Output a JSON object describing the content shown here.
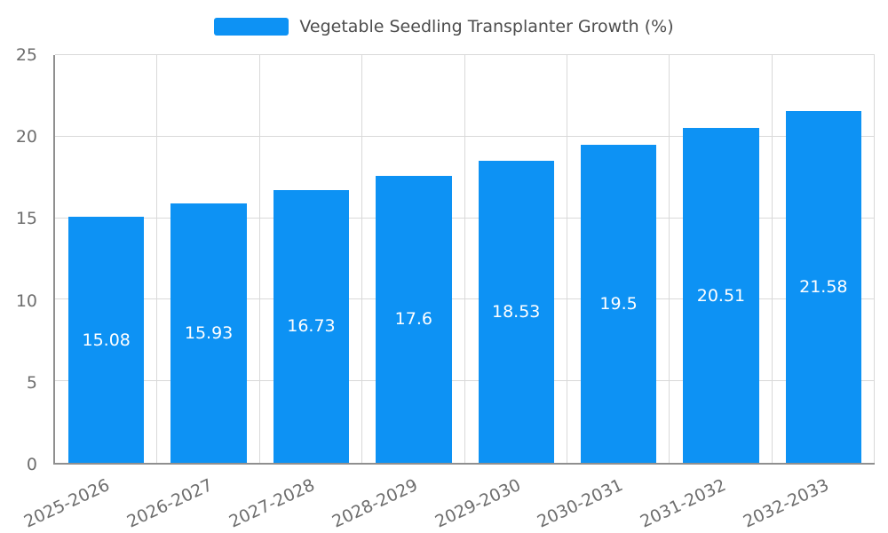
{
  "chart_data": {
    "type": "bar",
    "title": "Vegetable Seedling Transplanter Growth (%)",
    "categories": [
      "2025-2026",
      "2026-2027",
      "2027-2028",
      "2028-2029",
      "2029-2030",
      "2030-2031",
      "2031-2032",
      "2032-2033"
    ],
    "values": [
      15.08,
      15.93,
      16.73,
      17.6,
      18.53,
      19.5,
      20.51,
      21.58
    ],
    "value_labels": [
      "15.08",
      "15.93",
      "16.73",
      "17.6",
      "18.53",
      "19.5",
      "20.51",
      "21.58"
    ],
    "xlabel": "",
    "ylabel": "",
    "ylim": [
      0,
      25
    ],
    "y_ticks": [
      0,
      5,
      10,
      15,
      20,
      25
    ],
    "grid": true,
    "legend_position": "top",
    "bar_color": "#0d92f4",
    "grid_color": "#d9d9d9",
    "axis_line_color": "#8f8f8f",
    "tick_label_color": "#6e6e6e",
    "title_color": "#4d4d4d",
    "value_label_color": "#ffffff"
  }
}
